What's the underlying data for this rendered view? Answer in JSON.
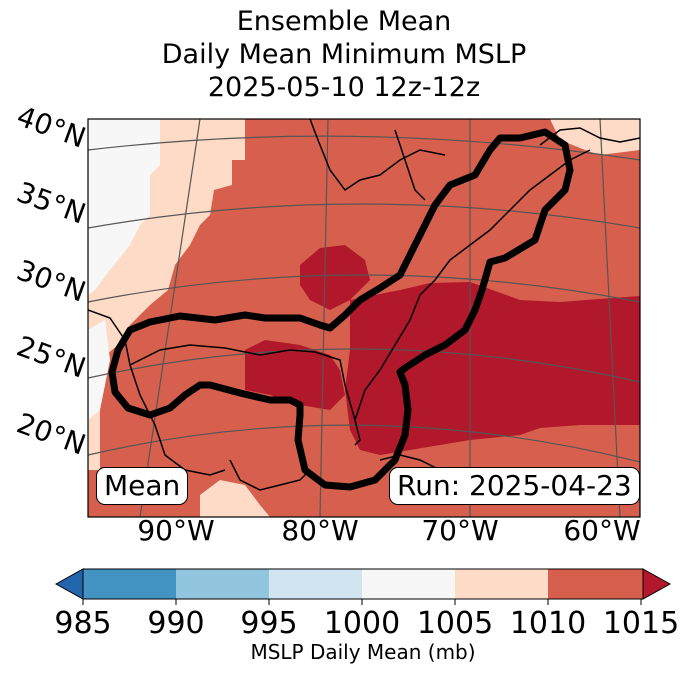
{
  "title": {
    "line1": "Ensemble Mean",
    "line2": "Daily Mean Minimum MSLP",
    "line3": "2025-05-10 12z-12z"
  },
  "map": {
    "lat_labels": [
      "40°N",
      "35°N",
      "30°N",
      "25°N",
      "20°N"
    ],
    "lon_labels": [
      "90°W",
      "80°W",
      "70°W",
      "60°W"
    ],
    "mean_label": "Mean",
    "run_label": "Run: 2025-04-23",
    "colors": {
      "c995_1000": "#d1e5f0",
      "c1000_1005": "#f7f7f7",
      "c1005_1010": "#fddbc7",
      "c1010_1015": "#d6604d",
      "c1015_plus": "#b2182b",
      "contour": "#000000",
      "coast": "#000000",
      "grid": "#555555"
    }
  },
  "colorbar": {
    "xlabel": "MSLP Daily Mean (mb)",
    "ticks": [
      "985",
      "990",
      "995",
      "1000",
      "1005",
      "1010",
      "1015"
    ],
    "colors": [
      "#2166ac",
      "#4393c3",
      "#92c5de",
      "#d1e5f0",
      "#f7f7f7",
      "#fddbc7",
      "#d6604d",
      "#b2182b"
    ]
  }
}
